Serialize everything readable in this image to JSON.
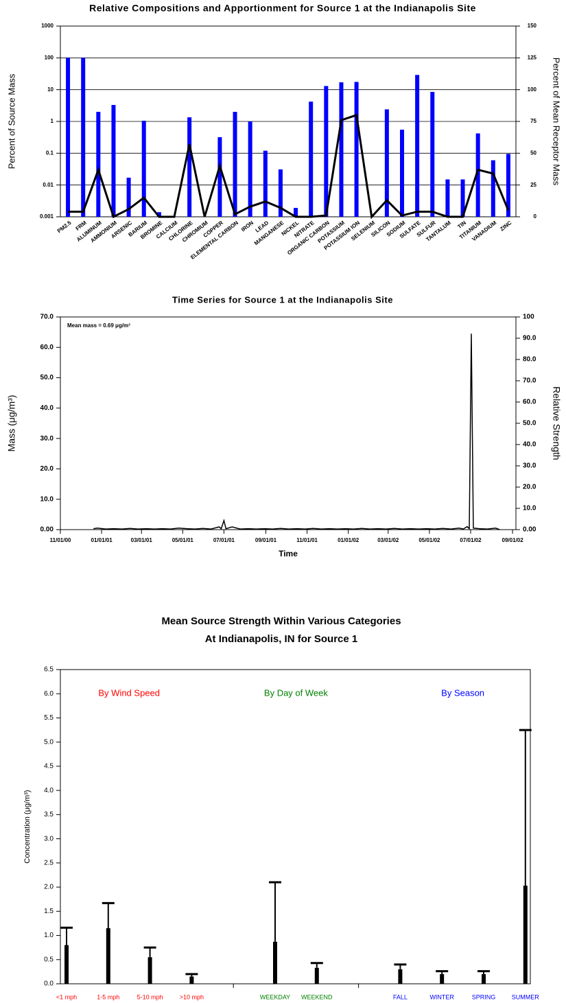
{
  "chart_data": [
    {
      "type": "bar_line",
      "title": "Relative Compositions and Apportionment for Source 1 at the Indianapolis Site",
      "ylabel": "Percent of Source Mass",
      "y2label": "Percent of Mean Receptor Mass",
      "categories": [
        "PM2.5",
        "FRM",
        "ALUMINUM",
        "AMMONIUM",
        "ARSENIC",
        "BARIUM",
        "BROMINE",
        "CALCIUM",
        "CHLORINE",
        "CHROMIUM",
        "COPPER",
        "ELEMENTAL CARBON",
        "IRON",
        "LEAD",
        "MANGANESE",
        "NICKEL",
        "NITRATE",
        "ORGANIC CARBON",
        "POTASSIUM",
        "POTASSIUM ION",
        "SELENIUM",
        "SILICON",
        "SODIUM",
        "SULFATE",
        "SULFUR",
        "TANTALUM",
        "TIN",
        "TITANIUM",
        "VANADIUM",
        "ZINC"
      ],
      "series": [
        {
          "color": "#0000ff",
          "values": [
            100,
            100,
            2,
            3.3,
            0.017,
            1.05,
            0.0014,
            null,
            1.35,
            null,
            0.32,
            2,
            1,
            0.12,
            0.031,
            0.0019,
            4.2,
            13,
            17,
            17.5,
            null,
            2.4,
            0.55,
            29,
            8.5,
            0.015,
            0.015,
            0.42,
            0.06,
            0.095
          ]
        },
        {
          "color": "#000000",
          "axis": "y2",
          "values": [
            4,
            4,
            37,
            0,
            6,
            15,
            0,
            0,
            57,
            0,
            40,
            2,
            8,
            12,
            7,
            0,
            0,
            1,
            76,
            80,
            0,
            13,
            1,
            4,
            4,
            0,
            0,
            37,
            34,
            5
          ]
        }
      ],
      "ylog": true,
      "ylim": [
        0.001,
        1000
      ],
      "yticks": [
        0.001,
        0.01,
        0.1,
        1,
        10,
        100,
        1000
      ],
      "y2lim": [
        0,
        150
      ],
      "y2ticks": [
        0,
        25,
        50,
        75,
        100,
        125,
        150
      ],
      "grid": true
    },
    {
      "type": "line",
      "title": "Time Series for Source 1 at the Indianapolis Site",
      "annotation": "Mean mass  =  0.69 μg/m³",
      "xlabel": "Time",
      "ylabel": "Mass (μg/m³)",
      "y2label": "Relative Strength",
      "x": [
        "2000-12-20",
        "2000-12-26",
        "2001-01-07",
        "2001-01-19",
        "2001-01-31",
        "2001-02-12",
        "2001-02-24",
        "2001-03-08",
        "2001-03-20",
        "2001-04-01",
        "2001-04-13",
        "2001-04-25",
        "2001-05-07",
        "2001-05-19",
        "2001-05-31",
        "2001-06-12",
        "2001-06-24",
        "2001-06-27",
        "2001-07-01",
        "2001-07-04",
        "2001-07-13",
        "2001-07-25",
        "2001-08-06",
        "2001-08-18",
        "2001-08-30",
        "2001-09-11",
        "2001-09-23",
        "2001-10-05",
        "2001-10-17",
        "2001-10-29",
        "2001-11-10",
        "2001-11-22",
        "2001-12-04",
        "2001-12-16",
        "2001-12-28",
        "2002-01-09",
        "2002-01-21",
        "2002-02-02",
        "2002-02-14",
        "2002-02-26",
        "2002-03-10",
        "2002-03-22",
        "2002-04-03",
        "2002-04-15",
        "2002-04-27",
        "2002-05-09",
        "2002-05-21",
        "2002-06-02",
        "2002-06-14",
        "2002-06-20",
        "2002-06-26",
        "2002-06-29",
        "2002-07-02",
        "2002-07-05",
        "2002-07-14",
        "2002-07-26",
        "2002-08-07",
        "2002-08-13"
      ],
      "series": [
        {
          "color": "#000000",
          "values": [
            0.3,
            0.5,
            0.2,
            0.3,
            0.2,
            0.4,
            0.2,
            0.3,
            0.2,
            0.3,
            0.2,
            0.5,
            0.3,
            0.2,
            0.4,
            0.2,
            0.9,
            0.3,
            3.0,
            0.3,
            0.9,
            0.2,
            0.3,
            0.2,
            0.3,
            0.2,
            0.4,
            0.2,
            0.3,
            0.2,
            0.4,
            0.2,
            0.3,
            0.2,
            0.3,
            0.2,
            0.4,
            0.2,
            0.3,
            0.2,
            0.4,
            0.2,
            0.3,
            0.2,
            0.3,
            0.2,
            0.4,
            0.2,
            0.5,
            0.2,
            1.0,
            0.3,
            64.5,
            0.5,
            0.3,
            0.2,
            0.5,
            0.0
          ]
        }
      ],
      "xlim": [
        "2000-11-01",
        "2002-09-06"
      ],
      "xticks": [
        {
          "value": "2000-11-01",
          "label": "11/01/00"
        },
        {
          "value": "2001-01-01",
          "label": "01/01/01"
        },
        {
          "value": "2001-03-01",
          "label": "03/01/01"
        },
        {
          "value": "2001-05-01",
          "label": "05/01/01"
        },
        {
          "value": "2001-07-01",
          "label": "07/01/01"
        },
        {
          "value": "2001-09-01",
          "label": "09/01/01"
        },
        {
          "value": "2001-11-01",
          "label": "11/01/01"
        },
        {
          "value": "2002-01-01",
          "label": "01/01/02"
        },
        {
          "value": "2002-03-01",
          "label": "03/01/02"
        },
        {
          "value": "2002-05-01",
          "label": "05/01/02"
        },
        {
          "value": "2002-07-01",
          "label": "07/01/02"
        },
        {
          "value": "2002-09-01",
          "label": "09/01/02"
        }
      ],
      "ylim": [
        0,
        70
      ],
      "yticks": [
        {
          "value": 0,
          "label": "0.00"
        },
        {
          "value": 10,
          "label": "10.0"
        },
        {
          "value": 20,
          "label": "20.0"
        },
        {
          "value": 30,
          "label": "30.0"
        },
        {
          "value": 40,
          "label": "40.0"
        },
        {
          "value": 50,
          "label": "50.0"
        },
        {
          "value": 60,
          "label": "60.0"
        },
        {
          "value": 70,
          "label": "70.0"
        }
      ],
      "y2lim": [
        0,
        100
      ],
      "y2ticks": [
        {
          "value": 0,
          "label": "0.00"
        },
        {
          "value": 10,
          "label": "10.0"
        },
        {
          "value": 20,
          "label": "20.0"
        },
        {
          "value": 30,
          "label": "30.0"
        },
        {
          "value": 40,
          "label": "40.0"
        },
        {
          "value": 50,
          "label": "50.0"
        },
        {
          "value": 60,
          "label": "60.0"
        },
        {
          "value": 70,
          "label": "70.0"
        },
        {
          "value": 80,
          "label": "80.0"
        },
        {
          "value": 90,
          "label": "90.0"
        },
        100
      ],
      "grid": false
    },
    {
      "type": "errorbar",
      "title": [
        "Mean Source Strength Within Various Categories",
        "At Indianapolis, IN  for Source 1"
      ],
      "ylabel": "Concentration (μg/m³)",
      "groups": [
        {
          "name": "By Wind Speed",
          "color": "#ff0000",
          "categories": [
            "<1 mph",
            "1-5 mph",
            "5-10 mph",
            ">10 mph"
          ],
          "values": [
            0.8,
            1.15,
            0.55,
            0.15
          ],
          "errors": [
            0.36,
            0.52,
            0.2,
            0.05
          ]
        },
        {
          "name": "By Day of Week",
          "color": "#008000",
          "categories": [
            "WEEKDAY",
            "WEEKEND"
          ],
          "values": [
            0.87,
            0.33
          ],
          "errors": [
            1.23,
            0.1
          ]
        },
        {
          "name": "By Season",
          "color": "#0000ff",
          "categories": [
            "FALL",
            "WINTER",
            "SPRING",
            "SUMMER"
          ],
          "values": [
            0.3,
            0.2,
            0.2,
            2.03
          ],
          "errors": [
            0.1,
            0.06,
            0.06,
            3.22
          ]
        }
      ],
      "color": "#000000",
      "ylim": [
        0,
        6.5
      ],
      "yticks": [
        {
          "value": 0,
          "label": "0.0"
        },
        {
          "value": 0.5,
          "label": "0.5"
        },
        {
          "value": 1,
          "label": "1.0"
        },
        {
          "value": 1.5,
          "label": "1.5"
        },
        {
          "value": 2,
          "label": "2.0"
        },
        {
          "value": 2.5,
          "label": "2.5"
        },
        {
          "value": 3,
          "label": "3.0"
        },
        {
          "value": 3.5,
          "label": "3.5"
        },
        {
          "value": 4,
          "label": "4.0"
        },
        {
          "value": 4.5,
          "label": "4.5"
        },
        {
          "value": 5,
          "label": "5.0"
        },
        {
          "value": 5.5,
          "label": "5.5"
        },
        {
          "value": 6,
          "label": "6.0"
        },
        {
          "value": 6.5,
          "label": "6.5"
        }
      ],
      "grid": false
    }
  ]
}
